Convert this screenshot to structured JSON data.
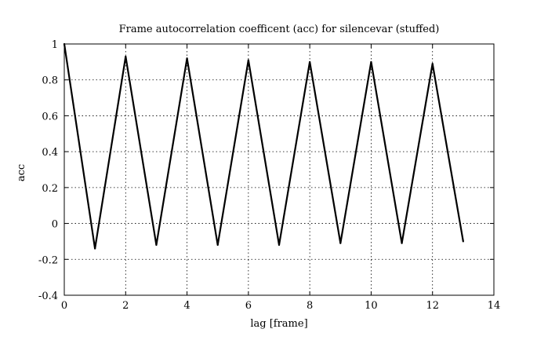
{
  "chart_data": {
    "type": "line",
    "title": "Frame autocorrelation coefficent (acc) for silencevar (stuffed)",
    "xlabel": "lag [frame]",
    "ylabel": "acc",
    "xlim": [
      0,
      14
    ],
    "ylim": [
      -0.4,
      1
    ],
    "xticks": [
      0,
      2,
      4,
      6,
      8,
      10,
      12,
      14
    ],
    "yticks": [
      -0.4,
      -0.2,
      0,
      0.2,
      0.4,
      0.6,
      0.8,
      1
    ],
    "xtick_labels": [
      "0",
      "2",
      "4",
      "6",
      "8",
      "10",
      "12",
      "14"
    ],
    "ytick_labels": [
      "-0.4",
      "-0.2",
      "0",
      "0.2",
      "0.4",
      "0.6",
      "0.8",
      "1"
    ],
    "grid": true,
    "series": [
      {
        "color": "#000000",
        "x": [
          0,
          1,
          2,
          3,
          4,
          5,
          6,
          7,
          8,
          9,
          10,
          11,
          12,
          13
        ],
        "values": [
          1.0,
          -0.14,
          0.93,
          -0.12,
          0.92,
          -0.12,
          0.91,
          -0.12,
          0.9,
          -0.11,
          0.9,
          -0.11,
          0.89,
          -0.1
        ]
      }
    ]
  }
}
